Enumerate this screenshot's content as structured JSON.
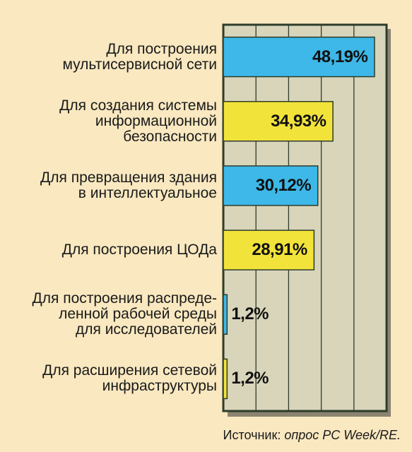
{
  "chart_data": {
    "type": "bar",
    "orientation": "horizontal",
    "categories": [
      "Для построения\nмультисервисной сети",
      "Для создания системы\nинформационной\nбезопасности",
      "Для превращения здания\nв интеллектуальное",
      "Для построения ЦОДа",
      "Для построения распреде-\nленной рабочей среды\nдля исследователей",
      "Для расширения сетевой\nинфраструктуры"
    ],
    "values": [
      48.19,
      34.93,
      30.12,
      28.91,
      1.2,
      1.2
    ],
    "value_labels": [
      "48,19%",
      "34,93%",
      "30,12%",
      "28,91%",
      "1,2%",
      "1,2%"
    ],
    "bar_colors": [
      "#3db8e8",
      "#f2e33a",
      "#3db8e8",
      "#f2e33a",
      "#3db8e8",
      "#f2e33a"
    ],
    "xlim": [
      0,
      50
    ],
    "grid": true,
    "plot_background": "#d8d5bb",
    "frame_color": "#2e3c2a",
    "source_prefix": "Источник: ",
    "source_text": "опрос PC Week/RE."
  }
}
